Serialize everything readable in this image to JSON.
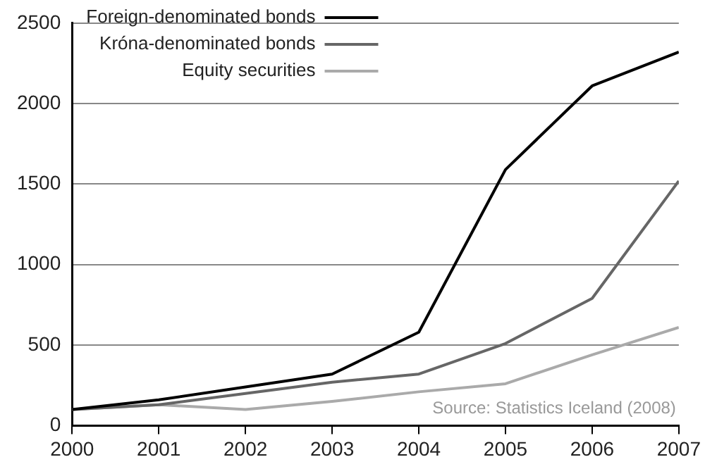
{
  "chart_data": {
    "type": "line",
    "x": [
      2000,
      2001,
      2002,
      2003,
      2004,
      2005,
      2006,
      2007
    ],
    "series": [
      {
        "name": "Foreign-denominated bonds",
        "color": "#000000",
        "values": [
          100,
          160,
          240,
          320,
          580,
          1590,
          2110,
          2320
        ]
      },
      {
        "name": "Króna-denominated bonds",
        "color": "#666666",
        "values": [
          100,
          130,
          200,
          270,
          320,
          510,
          790,
          1520
        ]
      },
      {
        "name": "Equity securities",
        "color": "#aaaaaa",
        "values": [
          100,
          130,
          100,
          150,
          210,
          260,
          440,
          610
        ]
      }
    ],
    "xlim": [
      2000,
      2007
    ],
    "xticks": [
      2000,
      2001,
      2002,
      2003,
      2004,
      2005,
      2006,
      2007
    ],
    "ylim": [
      0,
      2500
    ],
    "yticks": [
      0,
      500,
      1000,
      1500,
      2000,
      2500
    ],
    "grid": "y",
    "legend": "top left",
    "marker": "none",
    "line_style": "solid",
    "annotations": [
      "Source: Statistics Iceland (2008)"
    ]
  }
}
